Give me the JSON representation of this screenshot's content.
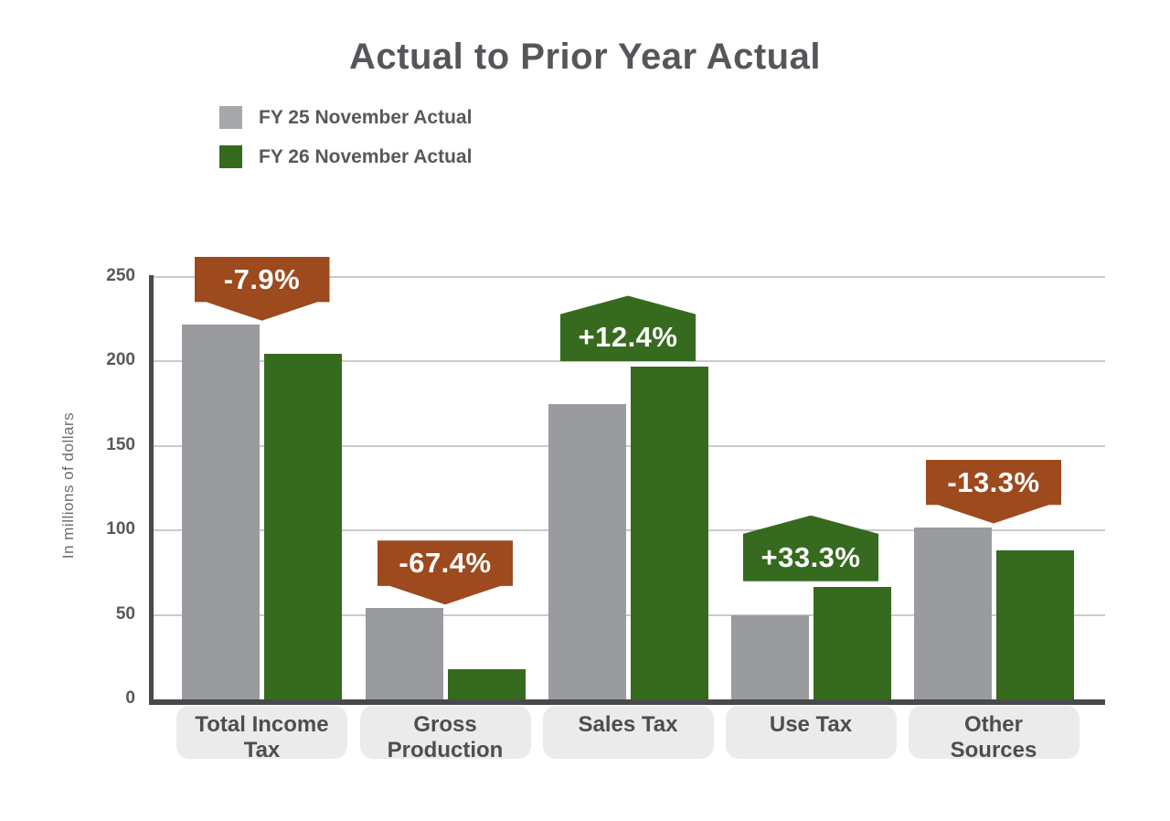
{
  "title": "Actual to Prior Year Actual",
  "legend": {
    "items": [
      {
        "label": "FY 25 November Actual",
        "series": "fy25"
      },
      {
        "label": "FY 26 November Actual",
        "series": "fy26"
      }
    ]
  },
  "colors": {
    "series_fy25": "#9A9B9E",
    "series_fy26": "#366A1F",
    "legend_fy25_swatch": "#A6A8AB",
    "legend_fy26_swatch": "#366A1F",
    "decrease_badge": "#9C4A1E",
    "increase_badge": "#366A1F",
    "title_text": "#55565A",
    "axis_text": "#57585A",
    "grid_line": "#C9CACB",
    "axis_line": "#48494B",
    "category_badge_bg": "#EBEBEC",
    "category_text": "#4D4E50",
    "callout_text": "#FFFFFF"
  },
  "chart_data": {
    "type": "bar",
    "title": "Actual to Prior Year Actual",
    "ylabel": "In millions of dollars",
    "xlabel": "",
    "categories": [
      "Total Income Tax",
      "Gross Production",
      "Sales Tax",
      "Use Tax",
      "Other Sources"
    ],
    "category_label_lines": [
      [
        "Total Income",
        "Tax"
      ],
      [
        "Gross",
        "Production"
      ],
      [
        "Sales Tax"
      ],
      [
        "Use Tax"
      ],
      [
        "Other",
        "Sources"
      ]
    ],
    "series": [
      {
        "name": "FY 25 November Actual",
        "values": [
          222,
          54,
          175,
          50,
          102
        ]
      },
      {
        "name": "FY 26 November Actual",
        "values": [
          204.5,
          17.6,
          196.7,
          66.7,
          88.4
        ]
      }
    ],
    "pct_change_labels": [
      "-7.9%",
      "-67.4%",
      "+12.4%",
      "+33.3%",
      "-13.3%"
    ],
    "yticks": [
      0,
      50,
      100,
      150,
      200,
      250
    ],
    "ylim": [
      0,
      250
    ],
    "grid": "horizontal",
    "legend_position": "top-left"
  }
}
